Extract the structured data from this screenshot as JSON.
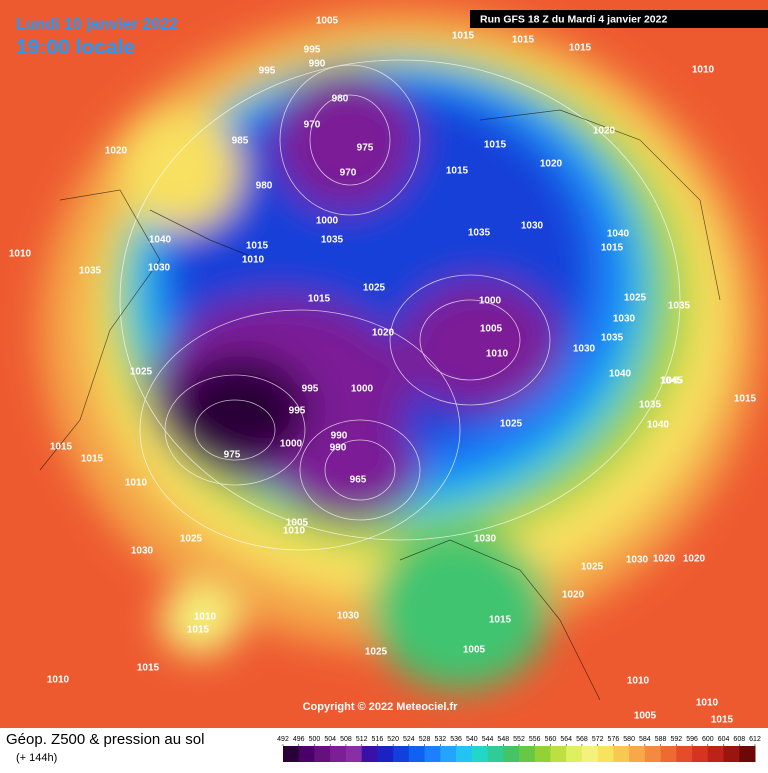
{
  "header": {
    "date": "Lundi 10 janvier 2022",
    "time": "19:00 locale",
    "run": "Run GFS 18 Z du Mardi 4 janvier 2022"
  },
  "map": {
    "copyright": "Copyright © 2022 Meteociel.fr",
    "pressure_labels": [
      1005,
      1015,
      1015,
      1015,
      1010,
      995,
      990,
      995,
      980,
      970,
      975,
      970,
      985,
      980,
      1020,
      1015,
      1020,
      1015,
      1020,
      1000,
      1010,
      1035,
      1035,
      1040,
      1015,
      1010,
      1035,
      1030,
      1040,
      1030,
      1015,
      1025,
      1020,
      1015,
      1025,
      1000,
      1005,
      1010,
      1030,
      1035,
      1025,
      1035,
      1030,
      1040,
      1045,
      1040,
      1035,
      1025,
      995,
      1000,
      995,
      1000,
      990,
      975,
      990,
      965,
      1005,
      1010,
      1015,
      1015,
      1010,
      1030,
      1025,
      1030,
      1020,
      1025,
      1010,
      1015,
      1030,
      1025,
      1015,
      1005,
      1030,
      1020,
      1020,
      1015,
      1010,
      1010,
      1005,
      1010,
      1015,
      1045,
      1015
    ]
  },
  "footer": {
    "title": "Géop. Z500 & pression au sol",
    "lead": "(+ 144h)",
    "scale": {
      "ticks": [
        492,
        496,
        500,
        504,
        508,
        512,
        516,
        520,
        524,
        528,
        532,
        536,
        540,
        544,
        548,
        552,
        556,
        560,
        564,
        568,
        572,
        576,
        580,
        584,
        588,
        592,
        596,
        600,
        604,
        608,
        612
      ],
      "colors": [
        "#2a0038",
        "#4a0066",
        "#66107f",
        "#7c1f96",
        "#8a2ea6",
        "#3a10a8",
        "#1a22c4",
        "#1240e0",
        "#1060f2",
        "#1a80ff",
        "#22a4ff",
        "#22c4f2",
        "#22d6c8",
        "#30cc98",
        "#44c466",
        "#66c844",
        "#92d234",
        "#bce040",
        "#def060",
        "#f4f27a",
        "#f8e45c",
        "#f8c850",
        "#f8a848",
        "#f28a40",
        "#ee6a32",
        "#e64c2c",
        "#d63420",
        "#bc2218",
        "#9c1410",
        "#6e0808"
      ]
    }
  }
}
